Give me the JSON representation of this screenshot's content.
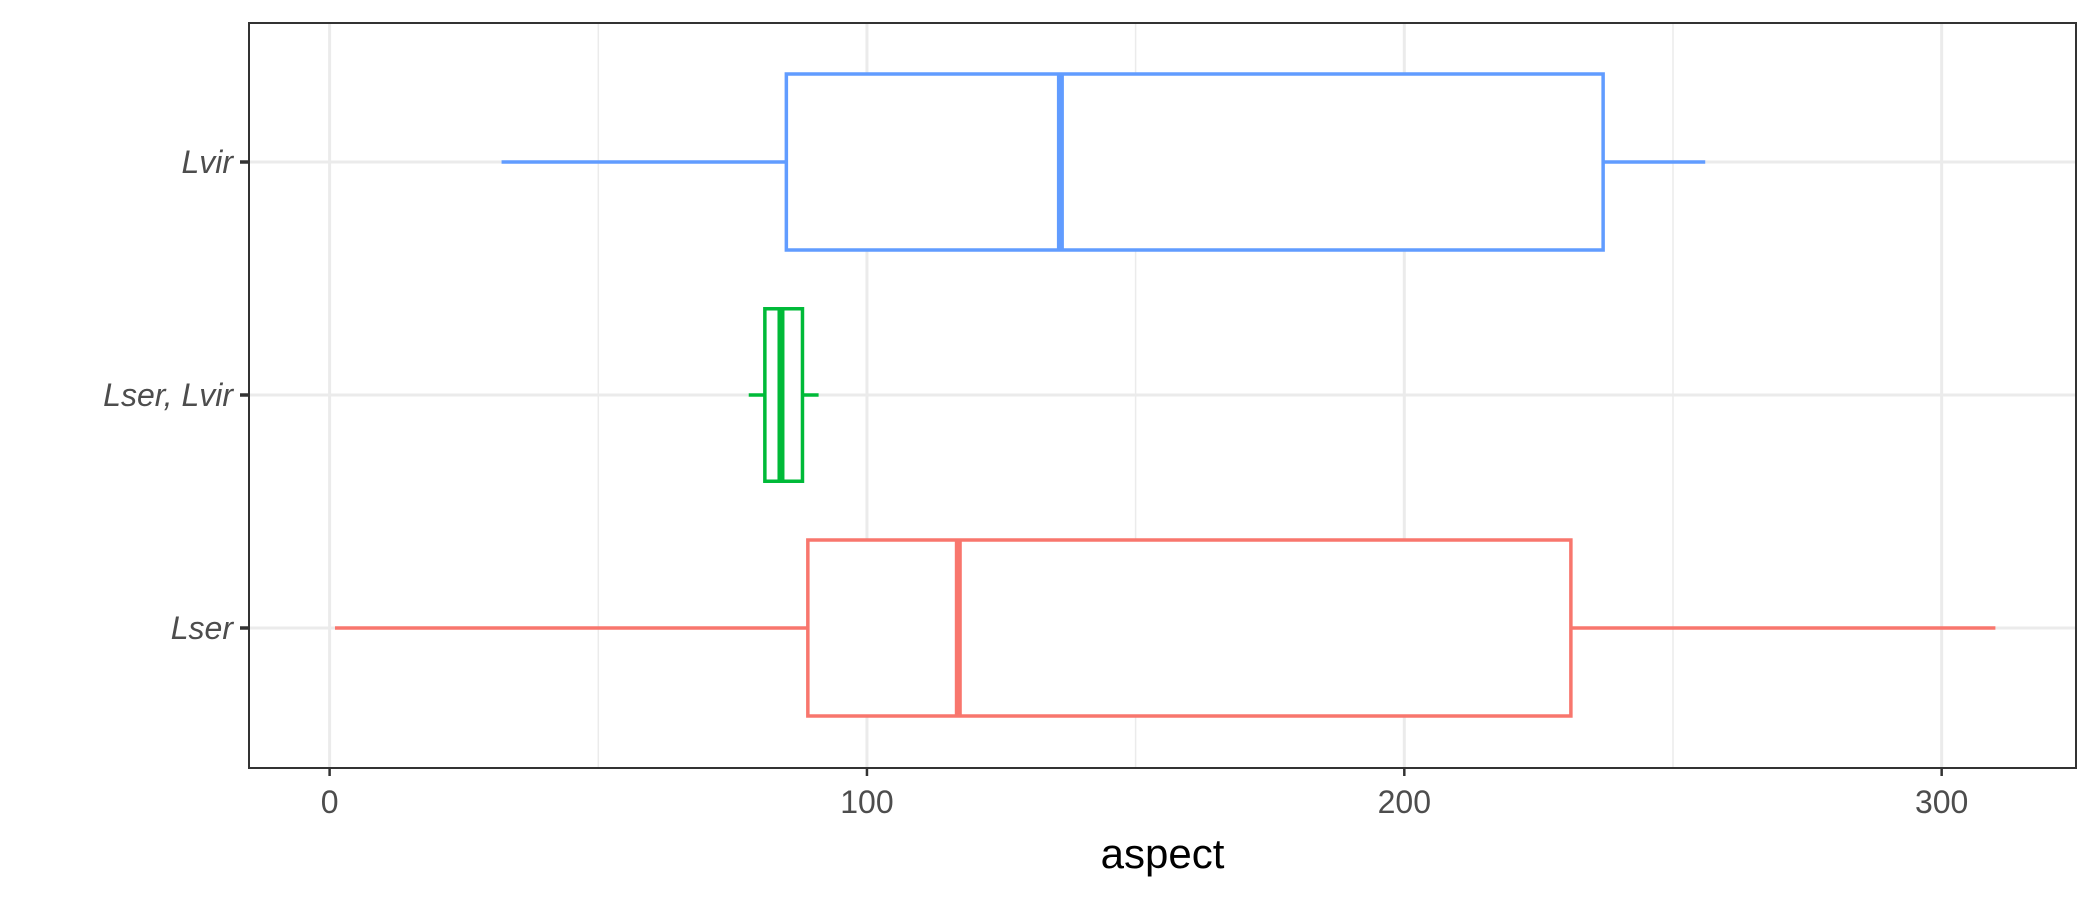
{
  "chart_data": {
    "type": "boxplot",
    "orientation": "horizontal",
    "title": "",
    "xlabel": "aspect",
    "ylabel": "",
    "xlim": [
      -15,
      325
    ],
    "x_ticks": [
      0,
      100,
      200,
      300
    ],
    "x_tick_labels": [
      "0",
      "100",
      "200",
      "300"
    ],
    "x_minor_ticks": [
      50,
      150,
      250
    ],
    "grid": true,
    "legend": "none",
    "categories": [
      "Lvir",
      "Lser, Lvir",
      "Lser"
    ],
    "boxes": [
      {
        "category": "Lvir",
        "color": "#619CFF",
        "whisker_low": 32,
        "q1": 85,
        "median": 136,
        "q3": 237,
        "whisker_high": 256
      },
      {
        "category": "Lser, Lvir",
        "color": "#00BA38",
        "whisker_low": 78,
        "q1": 81,
        "median": 84,
        "q3": 88,
        "whisker_high": 91
      },
      {
        "category": "Lser",
        "color": "#F8766D",
        "whisker_low": 1,
        "q1": 89,
        "median": 117,
        "q3": 231,
        "whisker_high": 310
      }
    ]
  }
}
